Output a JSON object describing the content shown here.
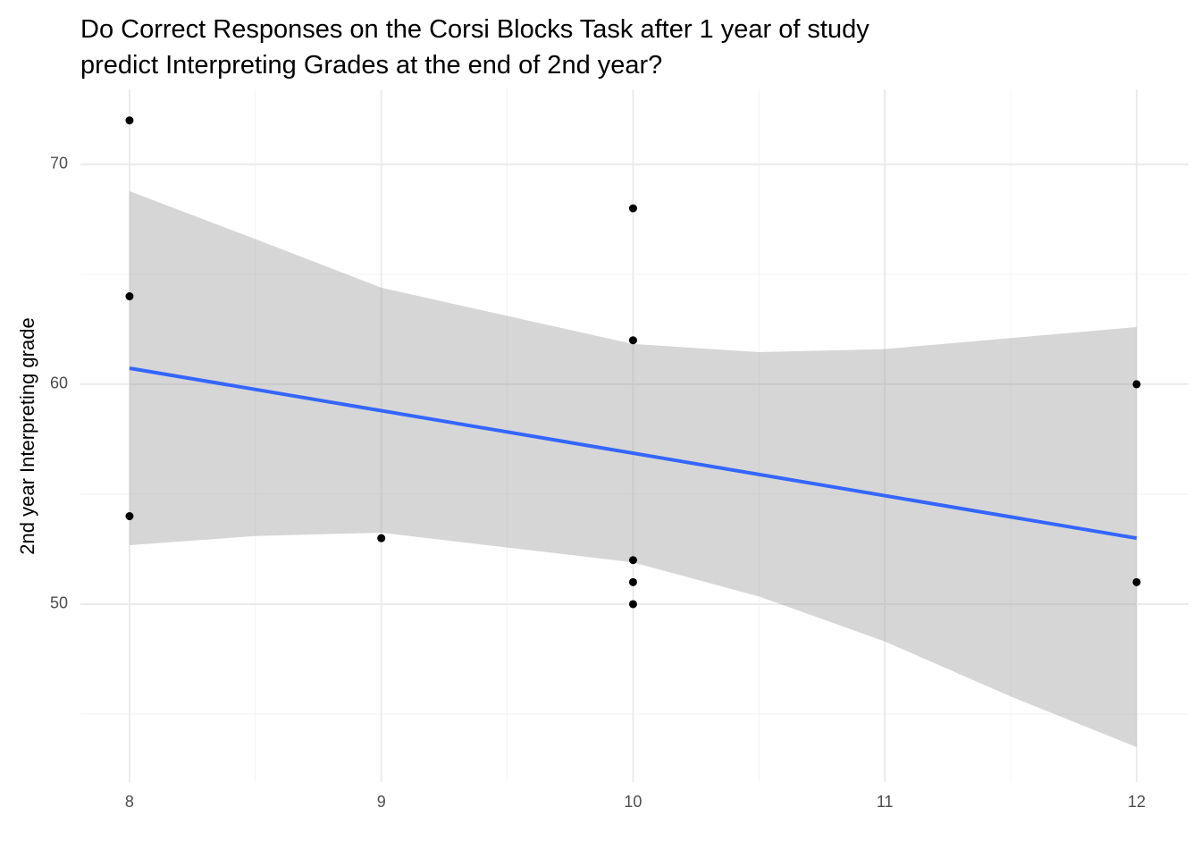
{
  "chart_data": {
    "type": "scatter",
    "title": [
      "Do Correct Responses on the Corsi Blocks Task after 1 year of study",
      "predict Interpreting Grades at the end of 2nd year?"
    ],
    "y_label": "2nd year Interpreting grade",
    "x": [
      8,
      8,
      8,
      9,
      10,
      10,
      10,
      10,
      10,
      12,
      12
    ],
    "values": [
      72,
      64,
      54,
      53,
      68,
      62,
      52,
      51,
      50,
      60,
      51
    ],
    "color": "#000000",
    "fit": {
      "x": [
        8,
        12
      ],
      "values": [
        60.73,
        53.0
      ],
      "color": "#3366ff"
    },
    "band": {
      "x": [
        8,
        8.5,
        9,
        10,
        10.5,
        11,
        11.5,
        12
      ],
      "ymin": [
        52.68,
        53.1,
        53.25,
        51.9,
        50.35,
        48.3,
        45.8,
        43.5
      ],
      "ymax": [
        68.78,
        66.6,
        64.39,
        61.83,
        61.46,
        61.6,
        62.1,
        62.6
      ],
      "color": "#999999"
    },
    "xlim": [
      7.805,
      12.206
    ],
    "ylim": [
      41.91,
      73.41
    ],
    "xticks": [
      8,
      9,
      10,
      11,
      12
    ],
    "yticks": [
      50,
      60,
      70
    ],
    "x_minor_ticks": [
      8.5,
      9.5,
      10.5,
      11.5
    ],
    "y_minor_ticks": [
      45,
      55,
      65
    ],
    "grid": true
  }
}
